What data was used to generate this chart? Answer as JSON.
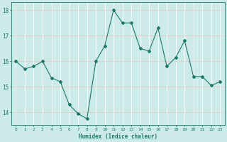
{
  "x": [
    0,
    1,
    2,
    3,
    4,
    5,
    6,
    7,
    8,
    9,
    10,
    11,
    12,
    13,
    14,
    15,
    16,
    17,
    18,
    19,
    20,
    21,
    22,
    23
  ],
  "y": [
    16.0,
    15.7,
    15.8,
    16.0,
    15.35,
    15.2,
    14.3,
    13.95,
    13.75,
    16.0,
    16.6,
    18.0,
    17.5,
    17.5,
    16.5,
    16.4,
    17.3,
    15.8,
    16.15,
    16.8,
    15.4,
    15.4,
    15.05,
    15.2
  ],
  "line_color": "#1a7a6a",
  "marker": "D",
  "marker_size": 2,
  "bg_color": "#cceae8",
  "grid_color_major": "#e8c8c8",
  "grid_color_minor": "#ffffff",
  "tick_color": "#1a7a6a",
  "label_color": "#1a7a6a",
  "xlabel": "Humidex (Indice chaleur)",
  "xlim": [
    -0.5,
    23.5
  ],
  "ylim": [
    13.5,
    18.3
  ],
  "yticks": [
    14,
    15,
    16,
    17,
    18
  ],
  "xticks": [
    0,
    1,
    2,
    3,
    4,
    5,
    6,
    7,
    8,
    9,
    10,
    11,
    12,
    13,
    14,
    15,
    16,
    17,
    18,
    19,
    20,
    21,
    22,
    23
  ]
}
